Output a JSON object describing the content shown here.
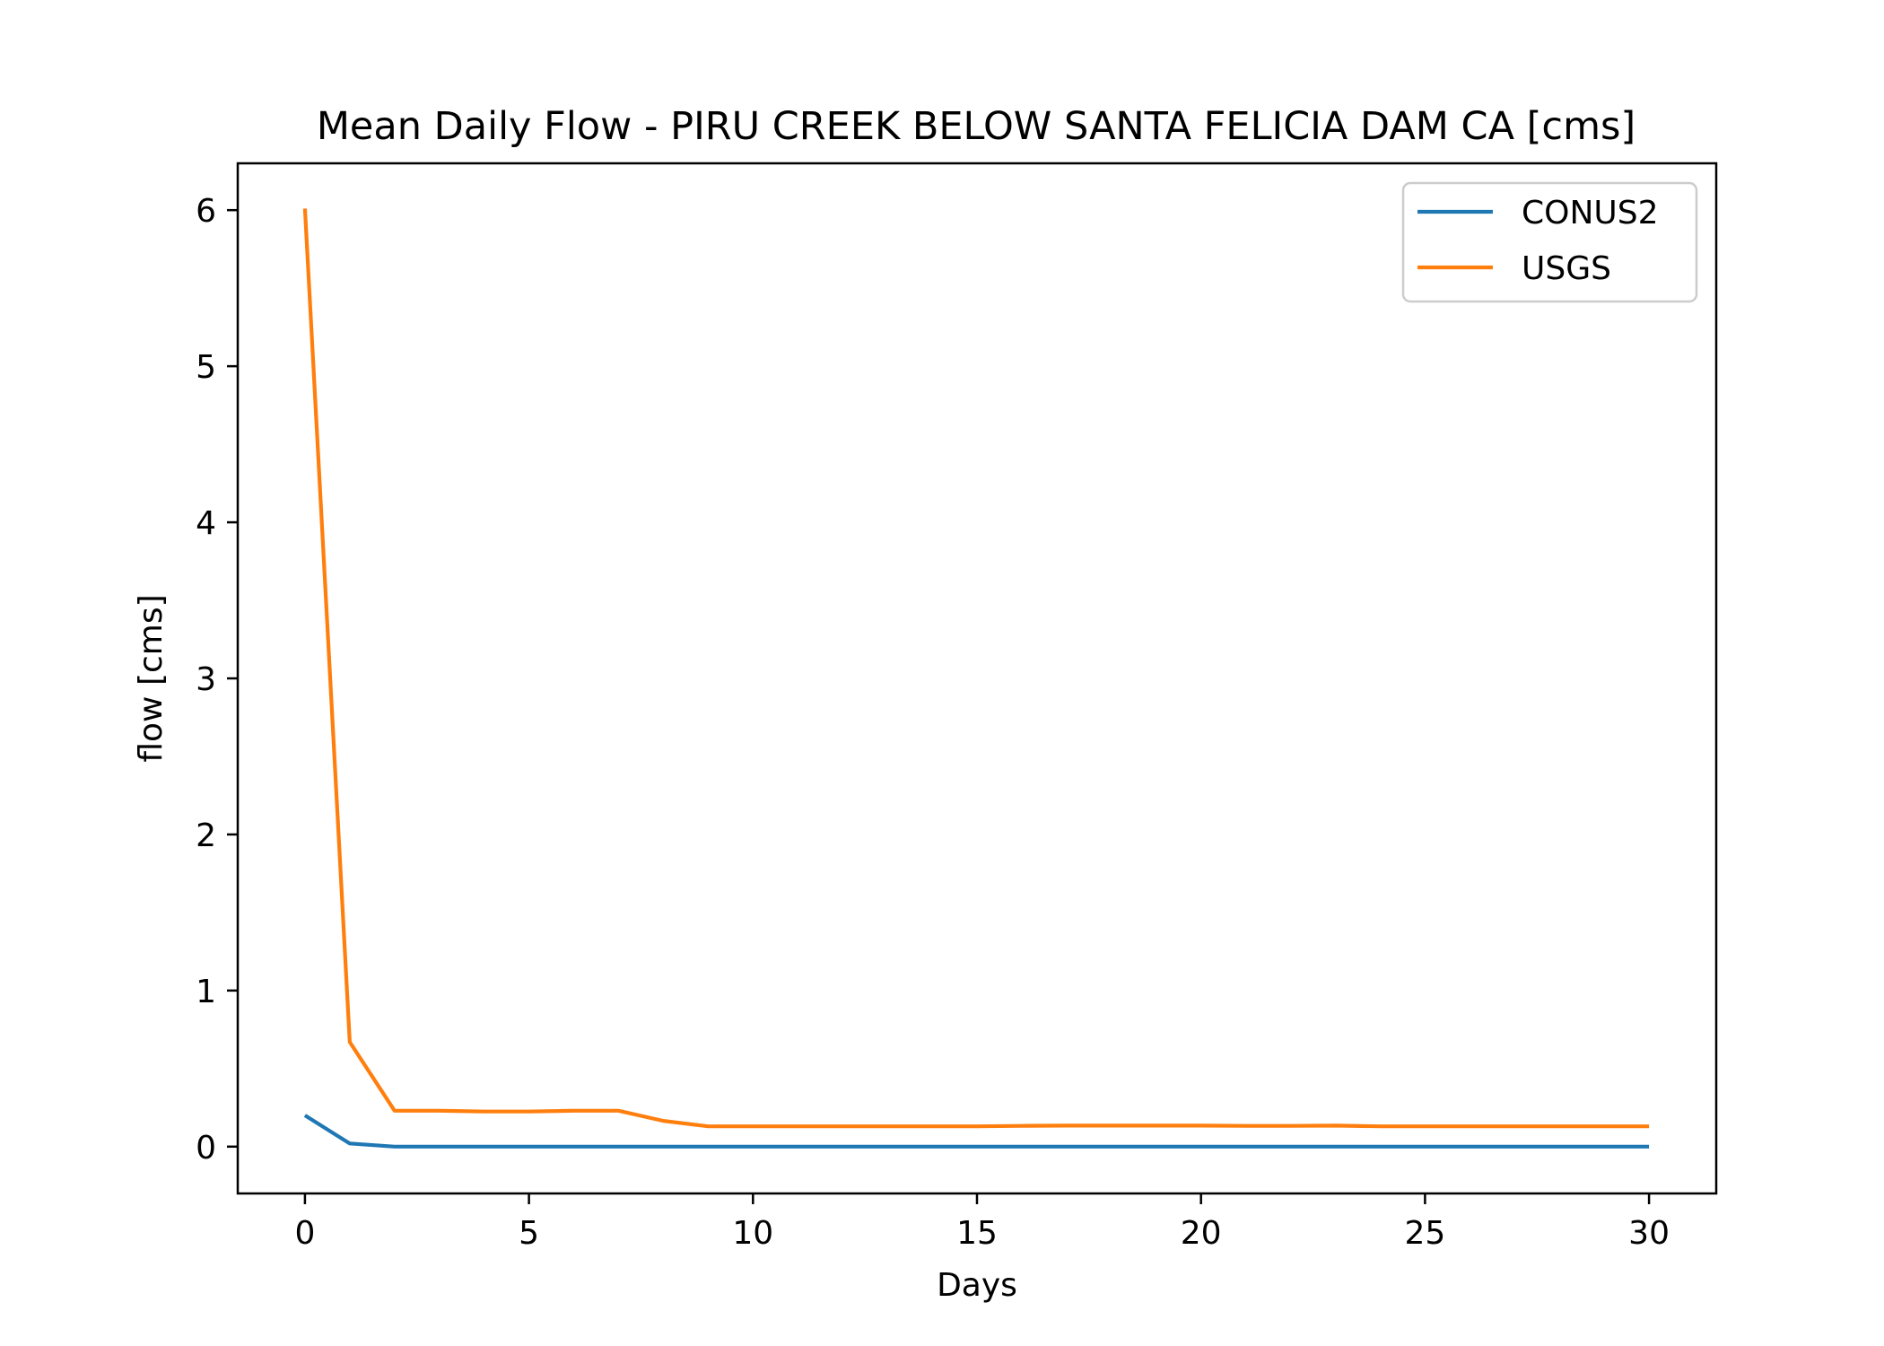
{
  "chart_data": {
    "type": "line",
    "title": "Mean Daily Flow - PIRU CREEK BELOW SANTA FELICIA DAM CA [cms]",
    "xlabel": "Days",
    "ylabel": "flow [cms]",
    "xlim": [
      -1.5,
      31.5
    ],
    "ylim": [
      -0.3,
      6.3
    ],
    "xticks": [
      0,
      5,
      10,
      15,
      20,
      25,
      30
    ],
    "yticks": [
      0,
      1,
      2,
      3,
      4,
      5,
      6
    ],
    "grid": false,
    "legend_position": "top-right",
    "x": [
      0,
      1,
      2,
      3,
      4,
      5,
      6,
      7,
      8,
      9,
      10,
      11,
      12,
      13,
      14,
      15,
      16,
      17,
      18,
      19,
      20,
      21,
      22,
      23,
      24,
      25,
      26,
      27,
      28,
      29,
      30
    ],
    "series": [
      {
        "name": "CONUS2",
        "color": "#1f77b4",
        "values": [
          0.2,
          0.02,
          0.0,
          0.0,
          0.0,
          0.0,
          0.0,
          0.0,
          0.0,
          0.0,
          0.0,
          0.0,
          0.0,
          0.0,
          0.0,
          0.0,
          0.0,
          0.0,
          0.0,
          0.0,
          0.0,
          0.0,
          0.0,
          0.0,
          0.0,
          0.0,
          0.0,
          0.0,
          0.0,
          0.0,
          0.0
        ]
      },
      {
        "name": "USGS",
        "color": "#ff7f0e",
        "values": [
          6.01,
          0.67,
          0.23,
          0.23,
          0.225,
          0.225,
          0.23,
          0.23,
          0.165,
          0.13,
          0.13,
          0.13,
          0.13,
          0.13,
          0.13,
          0.13,
          0.133,
          0.135,
          0.135,
          0.135,
          0.135,
          0.133,
          0.133,
          0.135,
          0.13,
          0.13,
          0.13,
          0.13,
          0.13,
          0.13,
          0.13
        ]
      }
    ]
  }
}
